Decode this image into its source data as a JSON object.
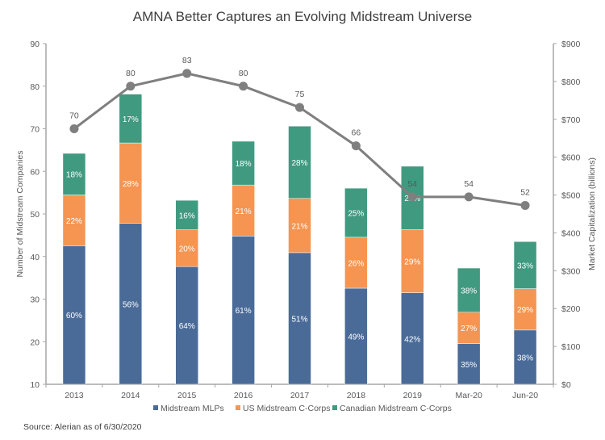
{
  "chart_data": {
    "type": "bar",
    "title": "AMNA Better Captures an Evolving Midstream Universe",
    "categories": [
      "2013",
      "2014",
      "2015",
      "2016",
      "2017",
      "2018",
      "2019",
      "Mar-20",
      "Jun-20"
    ],
    "ylabel_left": "Number of Midstream Companies",
    "ylabel_right": "Market Capitalization (billions)",
    "ylim_left": [
      10,
      90
    ],
    "yticks_left": [
      10,
      20,
      30,
      40,
      50,
      60,
      70,
      80,
      90
    ],
    "ylim_right": [
      0,
      900
    ],
    "yticks_right": [
      "$0",
      "$100",
      "$200",
      "$300",
      "$400",
      "$500",
      "$600",
      "$700",
      "$800",
      "$900"
    ],
    "ytick_values_right": [
      0,
      100,
      200,
      300,
      400,
      500,
      600,
      700,
      800,
      900
    ],
    "grid": false,
    "legend_position": "bottom",
    "bar_totals_market_cap_billions": [
      610,
      759,
      486,
      642,
      682,
      518,
      576,
      307,
      377
    ],
    "series": [
      {
        "name": "Midstream MLPs",
        "kind": "stacked-bar",
        "axis": "right",
        "color": "#4a6b98",
        "share_pct": [
          60,
          56,
          64,
          61,
          51,
          49,
          42,
          35,
          38
        ]
      },
      {
        "name": "US Midstream C-Corps",
        "kind": "stacked-bar",
        "axis": "right",
        "color": "#f59551",
        "share_pct": [
          22,
          28,
          20,
          21,
          21,
          26,
          29,
          27,
          29
        ]
      },
      {
        "name": "Canadian Midstream C-Corps",
        "kind": "stacked-bar",
        "axis": "right",
        "color": "#3f9a80",
        "share_pct": [
          18,
          17,
          16,
          18,
          28,
          25,
          29,
          38,
          33
        ]
      },
      {
        "name": "Number of Midstream Companies",
        "kind": "line",
        "axis": "left",
        "color": "#7f7f7f",
        "values": [
          70,
          80,
          83,
          80,
          75,
          66,
          54,
          54,
          52
        ],
        "labels": [
          "70",
          "80",
          "83",
          "80",
          "75",
          "66",
          "54",
          "54",
          "52"
        ]
      }
    ],
    "legend": [
      "Midstream MLPs",
      "US Midstream C-Corps",
      "Canadian Midstream C-Corps"
    ],
    "source": "Source: Alerian as of 6/30/2020"
  }
}
